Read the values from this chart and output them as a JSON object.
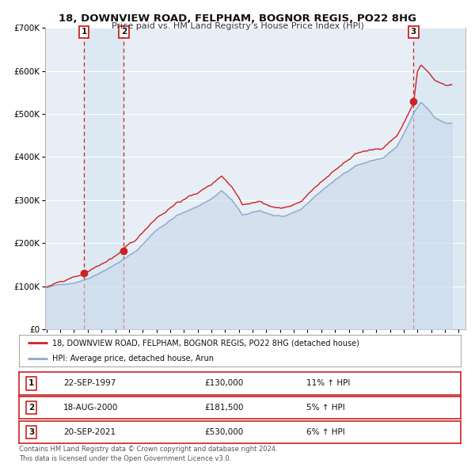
{
  "title": "18, DOWNVIEW ROAD, FELPHAM, BOGNOR REGIS, PO22 8HG",
  "subtitle": "Price paid vs. HM Land Registry's House Price Index (HPI)",
  "ylim": [
    0,
    700000
  ],
  "yticks": [
    0,
    100000,
    200000,
    300000,
    400000,
    500000,
    600000,
    700000
  ],
  "ytick_labels": [
    "£0",
    "£100K",
    "£200K",
    "£300K",
    "£400K",
    "£500K",
    "£600K",
    "£700K"
  ],
  "xlim_start": 1994.9,
  "xlim_end": 2025.5,
  "bg_color": "#ffffff",
  "plot_bg_color": "#e8eef5",
  "grid_color": "#ffffff",
  "sale_color": "#cc2222",
  "hpi_color": "#88aacc",
  "hpi_fill_color": "#c8d8ea",
  "vline_color": "#cc2222",
  "vband_color": "#dce8f2",
  "purchase_dates": [
    1997.73,
    2000.63,
    2021.72
  ],
  "purchase_prices": [
    130000,
    181500,
    530000
  ],
  "purchase_labels": [
    "1",
    "2",
    "3"
  ],
  "purchase_date_strs": [
    "22-SEP-1997",
    "18-AUG-2000",
    "20-SEP-2021"
  ],
  "purchase_price_strs": [
    "£130,000",
    "£181,500",
    "£530,000"
  ],
  "purchase_pct_strs": [
    "11% ↑ HPI",
    "5% ↑ HPI",
    "6% ↑ HPI"
  ],
  "legend_sale_label": "18, DOWNVIEW ROAD, FELPHAM, BOGNOR REGIS, PO22 8HG (detached house)",
  "legend_hpi_label": "HPI: Average price, detached house, Arun",
  "footer_line1": "Contains HM Land Registry data © Crown copyright and database right 2024.",
  "footer_line2": "This data is licensed under the Open Government Licence v3.0."
}
